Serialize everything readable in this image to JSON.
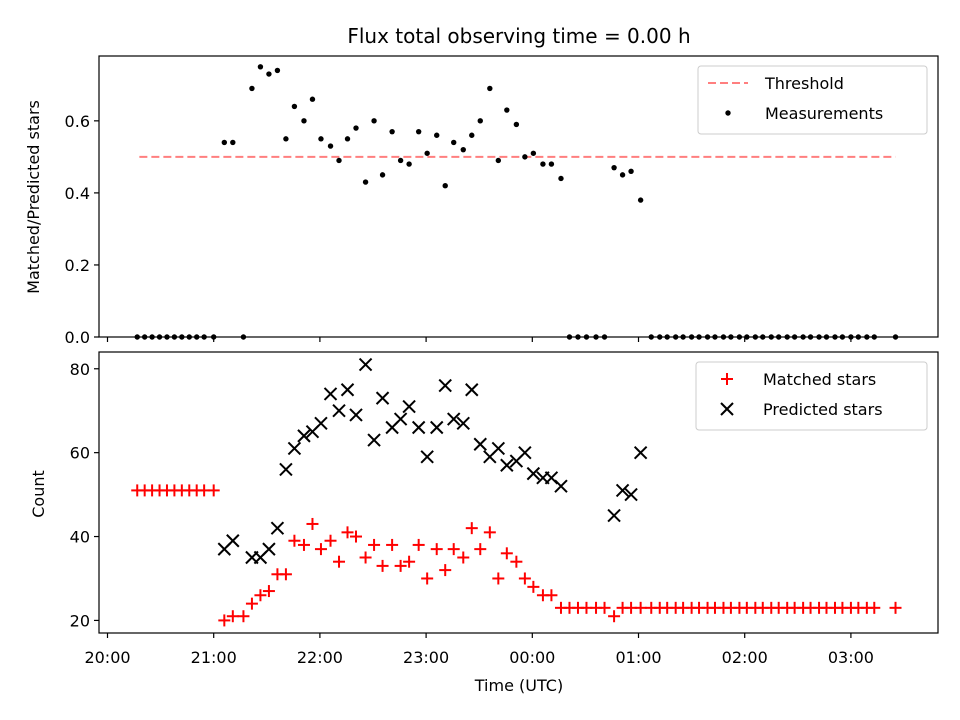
{
  "chart_data": {
    "title": "Flux total observing time = 0.00 h",
    "xlabel": "Time (UTC)",
    "x_ticks": [
      "20:00",
      "21:00",
      "22:00",
      "23:00",
      "00:00",
      "01:00",
      "02:00",
      "03:00"
    ],
    "x_tick_hours": [
      20,
      21,
      22,
      23,
      24,
      25,
      26,
      27
    ],
    "xlim": [
      19.92,
      27.82
    ],
    "panels": [
      {
        "type": "line+scatter",
        "ylabel": "Matched/Predicted stars",
        "ylim": [
          0.0,
          0.78
        ],
        "y_ticks": [
          0.0,
          0.2,
          0.4,
          0.6
        ],
        "y_tick_labels": [
          "0.0",
          "0.2",
          "0.4",
          "0.6"
        ],
        "legend_position": "upper-right",
        "threshold": {
          "name": "Threshold",
          "value": 0.5,
          "x_range": [
            20.3,
            27.42
          ],
          "color": "#ff7f7f",
          "style": "dashed"
        },
        "series": [
          {
            "name": "Measurements",
            "marker": "dot",
            "color": "#000000",
            "points": [
              [
                20.28,
                0
              ],
              [
                20.35,
                0
              ],
              [
                20.42,
                0
              ],
              [
                20.49,
                0
              ],
              [
                20.56,
                0
              ],
              [
                20.63,
                0
              ],
              [
                20.7,
                0
              ],
              [
                20.77,
                0
              ],
              [
                20.84,
                0
              ],
              [
                20.91,
                0
              ],
              [
                21.0,
                0
              ],
              [
                21.1,
                0.54
              ],
              [
                21.18,
                0.54
              ],
              [
                21.28,
                0
              ],
              [
                21.36,
                0.69
              ],
              [
                21.44,
                0.75
              ],
              [
                21.52,
                0.73
              ],
              [
                21.6,
                0.74
              ],
              [
                21.68,
                0.55
              ],
              [
                21.76,
                0.64
              ],
              [
                21.85,
                0.6
              ],
              [
                21.93,
                0.66
              ],
              [
                22.01,
                0.55
              ],
              [
                22.1,
                0.53
              ],
              [
                22.18,
                0.49
              ],
              [
                22.26,
                0.55
              ],
              [
                22.34,
                0.58
              ],
              [
                22.43,
                0.43
              ],
              [
                22.51,
                0.6
              ],
              [
                22.59,
                0.45
              ],
              [
                22.68,
                0.57
              ],
              [
                22.76,
                0.49
              ],
              [
                22.84,
                0.48
              ],
              [
                22.93,
                0.57
              ],
              [
                23.01,
                0.51
              ],
              [
                23.1,
                0.56
              ],
              [
                23.18,
                0.42
              ],
              [
                23.26,
                0.54
              ],
              [
                23.35,
                0.52
              ],
              [
                23.43,
                0.56
              ],
              [
                23.51,
                0.6
              ],
              [
                23.6,
                0.69
              ],
              [
                23.68,
                0.49
              ],
              [
                23.76,
                0.63
              ],
              [
                23.85,
                0.59
              ],
              [
                23.93,
                0.5
              ],
              [
                24.01,
                0.51
              ],
              [
                24.1,
                0.48
              ],
              [
                24.18,
                0.48
              ],
              [
                24.27,
                0.44
              ],
              [
                24.35,
                0
              ],
              [
                24.43,
                0
              ],
              [
                24.51,
                0
              ],
              [
                24.6,
                0
              ],
              [
                24.68,
                0
              ],
              [
                24.77,
                0.47
              ],
              [
                24.85,
                0.45
              ],
              [
                24.93,
                0.46
              ],
              [
                25.02,
                0.38
              ],
              [
                25.12,
                0
              ],
              [
                25.2,
                0
              ],
              [
                25.27,
                0
              ],
              [
                25.35,
                0
              ],
              [
                25.42,
                0
              ],
              [
                25.5,
                0
              ],
              [
                25.57,
                0
              ],
              [
                25.65,
                0
              ],
              [
                25.72,
                0
              ],
              [
                25.8,
                0
              ],
              [
                25.87,
                0
              ],
              [
                25.95,
                0
              ],
              [
                26.02,
                0
              ],
              [
                26.1,
                0
              ],
              [
                26.17,
                0
              ],
              [
                26.25,
                0
              ],
              [
                26.32,
                0
              ],
              [
                26.4,
                0
              ],
              [
                26.47,
                0
              ],
              [
                26.55,
                0
              ],
              [
                26.62,
                0
              ],
              [
                26.7,
                0
              ],
              [
                26.77,
                0
              ],
              [
                26.85,
                0
              ],
              [
                26.92,
                0
              ],
              [
                27.0,
                0
              ],
              [
                27.07,
                0
              ],
              [
                27.15,
                0
              ],
              [
                27.22,
                0
              ],
              [
                27.42,
                0
              ]
            ]
          }
        ]
      },
      {
        "type": "scatter",
        "ylabel": "Count",
        "ylim": [
          17,
          84
        ],
        "y_ticks": [
          20,
          40,
          60,
          80
        ],
        "y_tick_labels": [
          "20",
          "40",
          "60",
          "80"
        ],
        "legend_position": "upper-right",
        "series": [
          {
            "name": "Matched stars",
            "marker": "plus",
            "color": "#ff0000",
            "points": [
              [
                20.28,
                51
              ],
              [
                20.35,
                51
              ],
              [
                20.42,
                51
              ],
              [
                20.49,
                51
              ],
              [
                20.56,
                51
              ],
              [
                20.63,
                51
              ],
              [
                20.7,
                51
              ],
              [
                20.77,
                51
              ],
              [
                20.84,
                51
              ],
              [
                20.91,
                51
              ],
              [
                21.0,
                51
              ],
              [
                21.1,
                20
              ],
              [
                21.18,
                21
              ],
              [
                21.28,
                21
              ],
              [
                21.36,
                24
              ],
              [
                21.44,
                26
              ],
              [
                21.52,
                27
              ],
              [
                21.6,
                31
              ],
              [
                21.68,
                31
              ],
              [
                21.76,
                39
              ],
              [
                21.85,
                38
              ],
              [
                21.93,
                43
              ],
              [
                22.01,
                37
              ],
              [
                22.1,
                39
              ],
              [
                22.18,
                34
              ],
              [
                22.26,
                41
              ],
              [
                22.34,
                40
              ],
              [
                22.43,
                35
              ],
              [
                22.51,
                38
              ],
              [
                22.59,
                33
              ],
              [
                22.68,
                38
              ],
              [
                22.76,
                33
              ],
              [
                22.84,
                34
              ],
              [
                22.93,
                38
              ],
              [
                23.01,
                30
              ],
              [
                23.1,
                37
              ],
              [
                23.18,
                32
              ],
              [
                23.26,
                37
              ],
              [
                23.35,
                35
              ],
              [
                23.43,
                42
              ],
              [
                23.51,
                37
              ],
              [
                23.6,
                41
              ],
              [
                23.68,
                30
              ],
              [
                23.76,
                36
              ],
              [
                23.85,
                34
              ],
              [
                23.93,
                30
              ],
              [
                24.01,
                28
              ],
              [
                24.1,
                26
              ],
              [
                24.18,
                26
              ],
              [
                24.27,
                23
              ],
              [
                24.35,
                23
              ],
              [
                24.43,
                23
              ],
              [
                24.51,
                23
              ],
              [
                24.6,
                23
              ],
              [
                24.68,
                23
              ],
              [
                24.77,
                21
              ],
              [
                24.85,
                23
              ],
              [
                24.93,
                23
              ],
              [
                25.02,
                23
              ],
              [
                25.12,
                23
              ],
              [
                25.2,
                23
              ],
              [
                25.27,
                23
              ],
              [
                25.35,
                23
              ],
              [
                25.42,
                23
              ],
              [
                25.5,
                23
              ],
              [
                25.57,
                23
              ],
              [
                25.65,
                23
              ],
              [
                25.72,
                23
              ],
              [
                25.8,
                23
              ],
              [
                25.87,
                23
              ],
              [
                25.95,
                23
              ],
              [
                26.02,
                23
              ],
              [
                26.1,
                23
              ],
              [
                26.17,
                23
              ],
              [
                26.25,
                23
              ],
              [
                26.32,
                23
              ],
              [
                26.4,
                23
              ],
              [
                26.47,
                23
              ],
              [
                26.55,
                23
              ],
              [
                26.62,
                23
              ],
              [
                26.7,
                23
              ],
              [
                26.77,
                23
              ],
              [
                26.85,
                23
              ],
              [
                26.92,
                23
              ],
              [
                27.0,
                23
              ],
              [
                27.07,
                23
              ],
              [
                27.15,
                23
              ],
              [
                27.22,
                23
              ],
              [
                27.42,
                23
              ]
            ]
          },
          {
            "name": "Predicted stars",
            "marker": "x",
            "color": "#000000",
            "points": [
              [
                21.1,
                37
              ],
              [
                21.18,
                39
              ],
              [
                21.36,
                35
              ],
              [
                21.44,
                35
              ],
              [
                21.52,
                37
              ],
              [
                21.6,
                42
              ],
              [
                21.68,
                56
              ],
              [
                21.76,
                61
              ],
              [
                21.85,
                64
              ],
              [
                21.93,
                65
              ],
              [
                22.01,
                67
              ],
              [
                22.1,
                74
              ],
              [
                22.18,
                70
              ],
              [
                22.26,
                75
              ],
              [
                22.34,
                69
              ],
              [
                22.43,
                81
              ],
              [
                22.51,
                63
              ],
              [
                22.59,
                73
              ],
              [
                22.68,
                66
              ],
              [
                22.76,
                68
              ],
              [
                22.84,
                71
              ],
              [
                22.93,
                66
              ],
              [
                23.01,
                59
              ],
              [
                23.1,
                66
              ],
              [
                23.18,
                76
              ],
              [
                23.26,
                68
              ],
              [
                23.35,
                67
              ],
              [
                23.43,
                75
              ],
              [
                23.51,
                62
              ],
              [
                23.6,
                59
              ],
              [
                23.68,
                61
              ],
              [
                23.76,
                57
              ],
              [
                23.85,
                58
              ],
              [
                23.93,
                60
              ],
              [
                24.01,
                55
              ],
              [
                24.1,
                54
              ],
              [
                24.18,
                54
              ],
              [
                24.27,
                52
              ],
              [
                24.77,
                45
              ],
              [
                24.85,
                51
              ],
              [
                24.93,
                50
              ],
              [
                25.02,
                60
              ]
            ]
          }
        ]
      }
    ]
  }
}
